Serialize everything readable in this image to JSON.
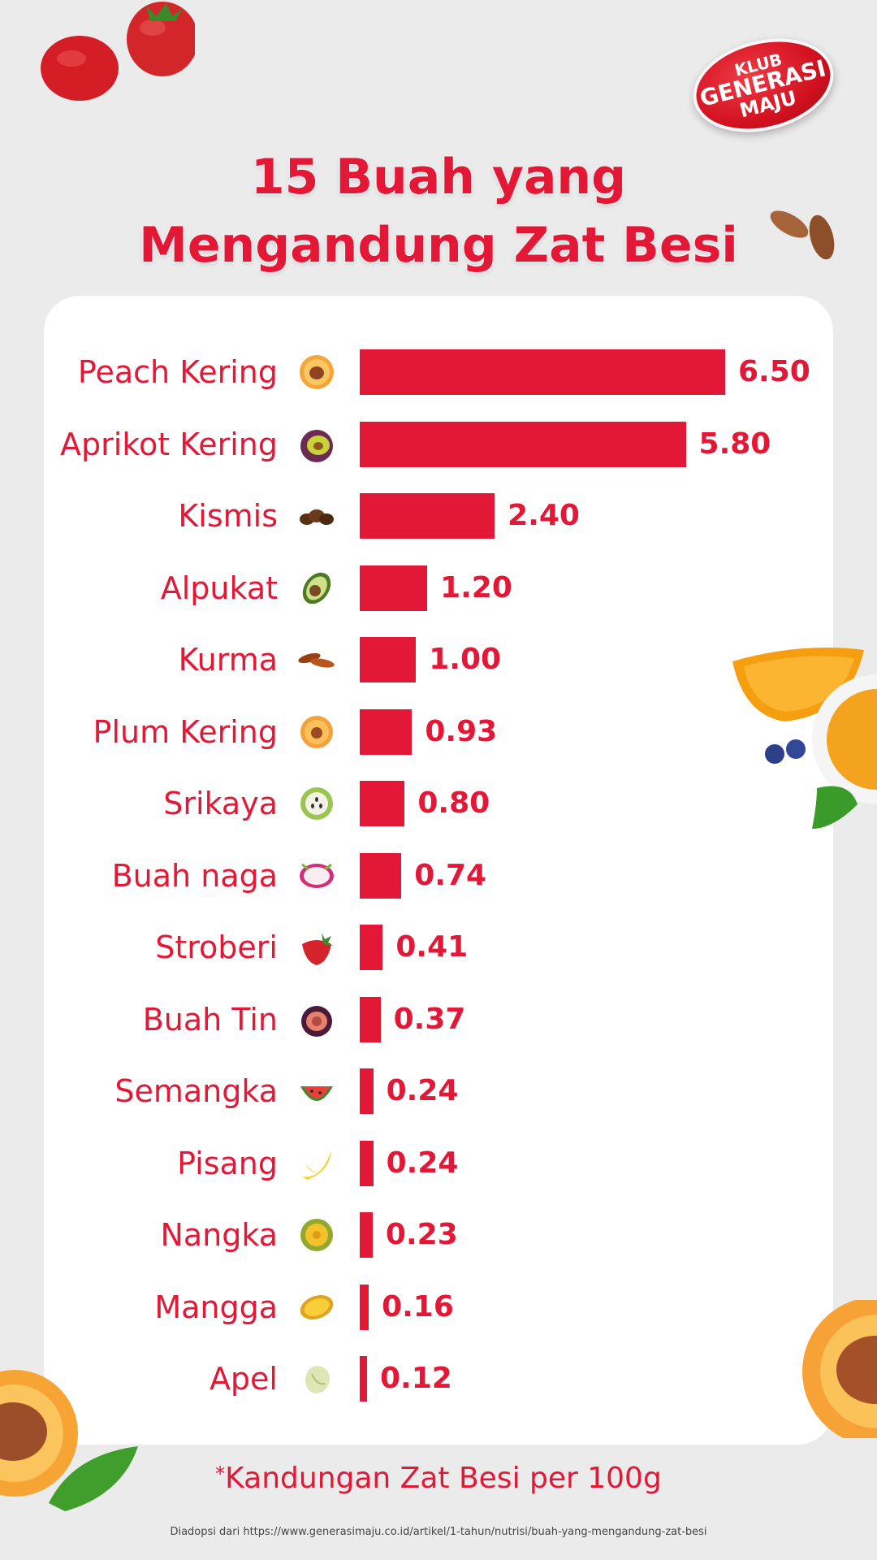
{
  "logo": {
    "line1": "KLUB",
    "line2": "GENERASI",
    "line3": "MAJU"
  },
  "title": {
    "line1": "15 Buah yang",
    "line2": "Mengandung Zat Besi"
  },
  "colors": {
    "accent": "#e31837",
    "background": "#ebebeb",
    "card": "#ffffff"
  },
  "chart_data": {
    "type": "bar",
    "orientation": "horizontal",
    "title": "15 Buah yang Mengandung Zat Besi",
    "categories": [
      "Peach Kering",
      "Aprikot Kering",
      "Kismis",
      "Alpukat",
      "Kurma",
      "Plum Kering",
      "Srikaya",
      "Buah naga",
      "Stroberi",
      "Buah Tin",
      "Semangka",
      "Pisang",
      "Nangka",
      "Mangga",
      "Apel"
    ],
    "values": [
      6.5,
      5.8,
      2.4,
      1.2,
      1.0,
      0.93,
      0.8,
      0.74,
      0.41,
      0.37,
      0.24,
      0.24,
      0.23,
      0.16,
      0.12
    ],
    "value_labels": [
      "6.50",
      "5.80",
      "2.40",
      "1.20",
      "1.00",
      "0.93",
      "0.80",
      "0.74",
      "0.41",
      "0.37",
      "0.24",
      "0.24",
      "0.23",
      "0.16",
      "0.12"
    ],
    "icons": [
      "peach-icon",
      "apricot-icon",
      "raisin-icon",
      "avocado-icon",
      "date-icon",
      "plum-icon",
      "soursop-icon",
      "dragon-fruit-icon",
      "strawberry-icon",
      "fig-icon",
      "watermelon-icon",
      "banana-icon",
      "jackfruit-icon",
      "mango-icon",
      "apple-icon"
    ],
    "xlim": [
      0,
      6.5
    ],
    "grid": false,
    "legend": "none"
  },
  "footnote": {
    "asterisk": "*",
    "text": "Kandungan Zat Besi per 100g"
  },
  "source": "Diadopsi dari https://www.generasimaju.co.id/artikel/1-tahun/nutrisi/buah-yang-mengandung-zat-besi"
}
